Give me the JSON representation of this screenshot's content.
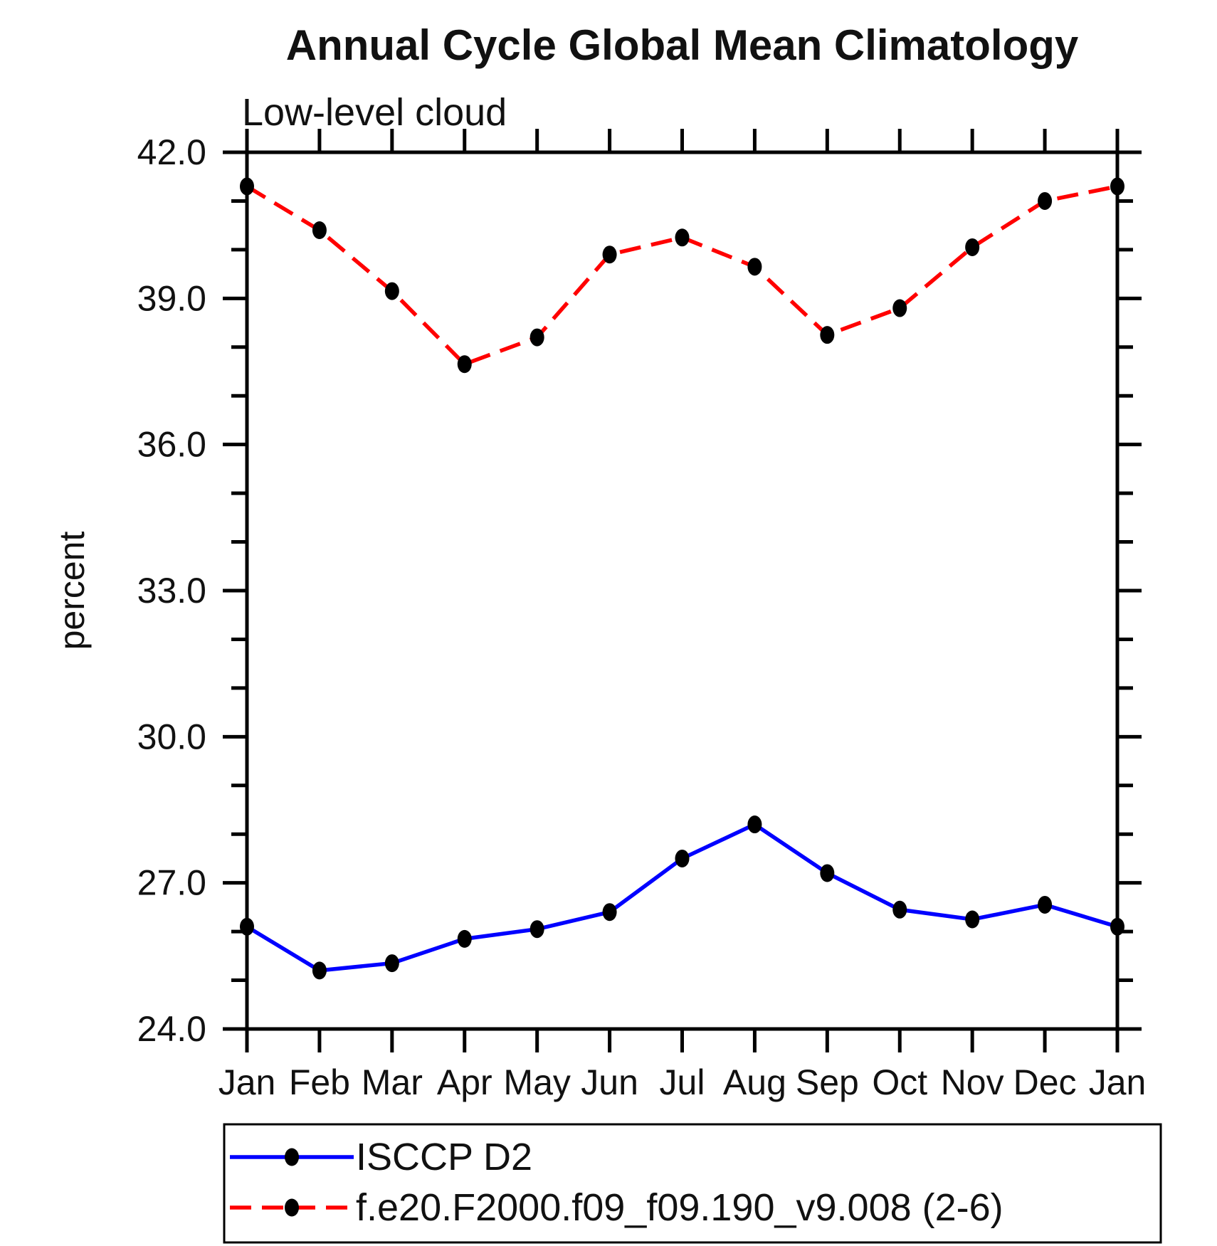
{
  "figure": {
    "background": "#ffffff"
  },
  "chart_data": {
    "type": "line",
    "title": "Annual Cycle Global Mean Climatology",
    "subtitle": "Low-level cloud",
    "xlabel": "",
    "ylabel": "percent",
    "categories": [
      "Jan",
      "Feb",
      "Mar",
      "Apr",
      "May",
      "Jun",
      "Jul",
      "Aug",
      "Sep",
      "Oct",
      "Nov",
      "Dec",
      "Jan"
    ],
    "ylim": [
      24.0,
      42.0
    ],
    "yticks_major": {
      "values": [
        24.0,
        27.0,
        30.0,
        33.0,
        36.0,
        39.0,
        42.0
      ],
      "labels": [
        "24.0",
        "27.0",
        "30.0",
        "33.0",
        "36.0",
        "39.0",
        "42.0"
      ]
    },
    "ytick_minor_step": 1.0,
    "grid": false,
    "legend_position": "bottom-left-box",
    "series": [
      {
        "name": "ISCCP D2",
        "color": "#0000ff",
        "line_style": "solid",
        "marker": "filled-dot",
        "marker_color": "#000000",
        "values": [
          26.1,
          25.2,
          25.35,
          25.85,
          26.05,
          26.4,
          27.5,
          28.2,
          27.2,
          26.45,
          26.25,
          26.55,
          26.1
        ]
      },
      {
        "name": "f.e20.F2000.f09_f09.190_v9.008 (2-6)",
        "color": "#ff0000",
        "line_style": "dashed",
        "marker": "filled-dot",
        "marker_color": "#000000",
        "values": [
          41.3,
          40.4,
          39.15,
          37.65,
          38.2,
          39.9,
          40.25,
          39.65,
          38.25,
          38.8,
          40.05,
          41.0,
          41.3
        ]
      }
    ],
    "colors": {
      "axis": "#000000",
      "text": "#111111",
      "subtitle_text": "#2b2b2b",
      "background": "#ffffff"
    }
  }
}
